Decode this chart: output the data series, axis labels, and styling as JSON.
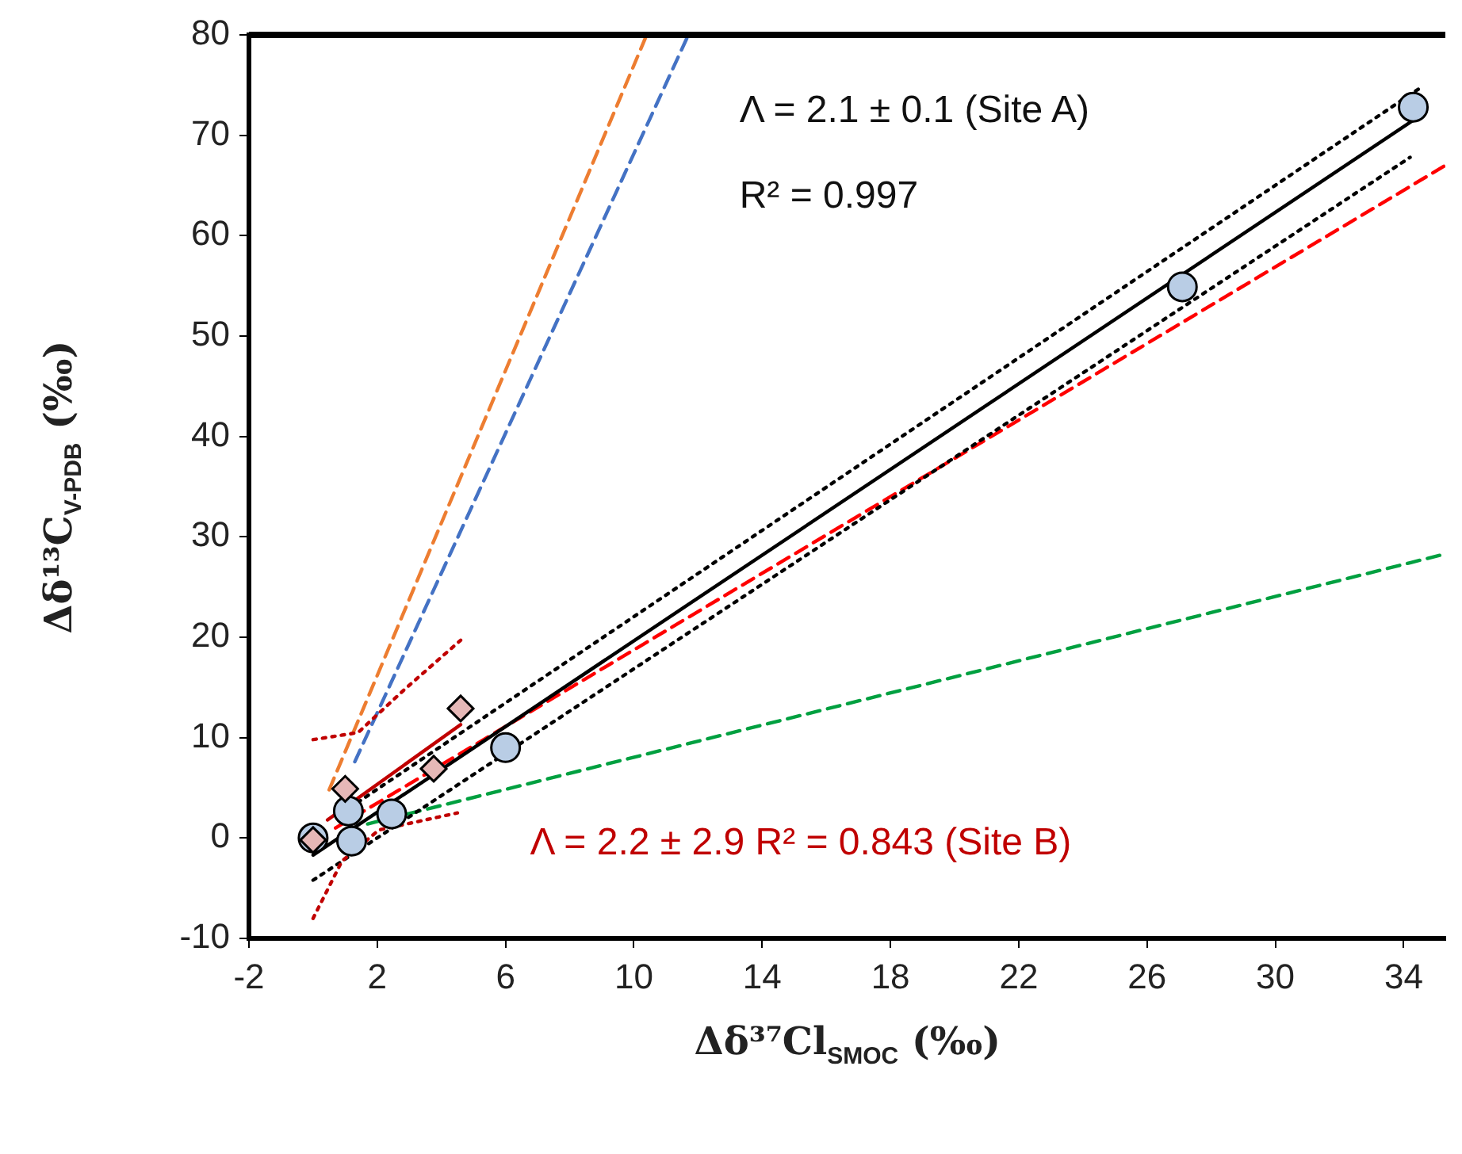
{
  "chart_data": {
    "type": "scatter",
    "xlabel": "Δδ³⁷Cl$_{SMOC}$ (‰)",
    "ylabel": "Δδ¹³C$_{V-PDB}$ (‰)",
    "xlim": [
      -2,
      35.3
    ],
    "xticks": [
      -2,
      2,
      6,
      10,
      14,
      18,
      22,
      26,
      30,
      34
    ],
    "ylim": [
      -10,
      80
    ],
    "yticks": [
      -10,
      0,
      10,
      20,
      30,
      40,
      50,
      60,
      70,
      80
    ],
    "grid": false,
    "legend": false,
    "series": [
      {
        "type": "line",
        "color": "#ed7d31",
        "line_style": "dashed",
        "marker": "none",
        "x": [
          0.5,
          10.4
        ],
        "values": [
          4.8,
          80
        ]
      },
      {
        "type": "line",
        "color": "#4472c4",
        "line_style": "dashed",
        "marker": "none",
        "x": [
          1.3,
          11.7
        ],
        "values": [
          7.6,
          80
        ]
      },
      {
        "type": "line",
        "color": "#ff0000",
        "line_style": "dashed",
        "marker": "none",
        "x": [
          0.7,
          35.3
        ],
        "values": [
          1,
          67
        ]
      },
      {
        "type": "line",
        "color": "#00a040",
        "line_style": "dashed",
        "marker": "none",
        "x": [
          1.7,
          35.3
        ],
        "values": [
          1.4,
          28.3
        ]
      },
      {
        "type": "line",
        "color": "#000000",
        "line_style": "dotted",
        "marker": "none",
        "x": [
          0.9,
          34.6
        ],
        "values": [
          2.5,
          74.9
        ]
      },
      {
        "type": "line",
        "color": "#000000",
        "line_style": "dotted",
        "marker": "none",
        "x": [
          0,
          34.2
        ],
        "values": [
          -4.2,
          67.8
        ]
      },
      {
        "type": "line",
        "color": "#000000",
        "line_style": "solid",
        "marker": "none",
        "x": [
          0,
          34.3
        ],
        "values": [
          -1.7,
          71.5
        ]
      },
      {
        "type": "line",
        "color": "#c00000",
        "line_style": "dotted",
        "marker": "none",
        "x": [
          0,
          1.4,
          2.85,
          4.6
        ],
        "values": [
          9.8,
          10.5,
          14.8,
          19.7
        ]
      },
      {
        "type": "line",
        "color": "#c00000",
        "line_style": "dotted",
        "marker": "none",
        "x": [
          0,
          0.9,
          2.05,
          4.5
        ],
        "values": [
          -8,
          -2.3,
          0.8,
          2.5
        ]
      },
      {
        "type": "line",
        "color": "#c00000",
        "line_style": "solid",
        "marker": "none",
        "x": [
          0.45,
          4.6
        ],
        "values": [
          1.8,
          11.3
        ]
      },
      {
        "color": "#b9cde5",
        "marker": "circle",
        "x": [
          0,
          1.1,
          1.2,
          2.45,
          6,
          27.1,
          34.3
        ],
        "values": [
          0,
          2.7,
          -0.3,
          2.4,
          9,
          54.9,
          72.8
        ]
      },
      {
        "color": "#e6b8b7",
        "marker": "diamond",
        "x": [
          0,
          1,
          3.76,
          4.6
        ],
        "values": [
          -0.2,
          4.9,
          6.9,
          12.9
        ]
      }
    ],
    "annotations": [
      "Λ = 2.1 ± 0.1  (Site A)",
      "R² = 0.997",
      "Λ = 2.2 ± 2.9   R² = 0.843  (Site B)"
    ]
  }
}
